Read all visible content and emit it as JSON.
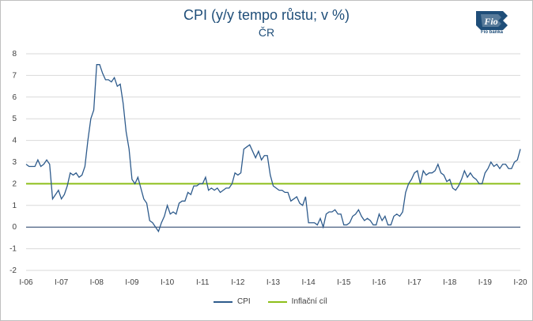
{
  "colors": {
    "cpi": "#2e5b8c",
    "target": "#8dbf1a",
    "grid": "#d9d9d9",
    "axis": "#1f3864"
  },
  "logo": {
    "icon": "fio-banka-logo",
    "text": "Fio banka"
  },
  "chart_data": {
    "type": "line",
    "title": "CPI (y/y tempo růstu; v %)",
    "subtitle": "ČR",
    "ylim": [
      -2,
      8
    ],
    "yticks": [
      -2,
      -1,
      0,
      1,
      2,
      3,
      4,
      5,
      6,
      7,
      8
    ],
    "xlim": [
      0,
      168
    ],
    "xticks": [
      {
        "label": "I-06",
        "x": 0
      },
      {
        "label": "I-07",
        "x": 12
      },
      {
        "label": "I-08",
        "x": 24
      },
      {
        "label": "I-09",
        "x": 36
      },
      {
        "label": "I-10",
        "x": 48
      },
      {
        "label": "I-11",
        "x": 60
      },
      {
        "label": "I-12",
        "x": 72
      },
      {
        "label": "I-13",
        "x": 84
      },
      {
        "label": "I-14",
        "x": 96
      },
      {
        "label": "I-15",
        "x": 108
      },
      {
        "label": "I-16",
        "x": 120
      },
      {
        "label": "I-17",
        "x": 132
      },
      {
        "label": "I-18",
        "x": 144
      },
      {
        "label": "I-19",
        "x": 156
      },
      {
        "label": "I-20",
        "x": 168
      }
    ],
    "grid": "horizontal",
    "legend_position": "bottom",
    "series": [
      {
        "name": "CPI",
        "values": [
          2.9,
          2.8,
          2.8,
          2.8,
          3.1,
          2.8,
          2.9,
          3.1,
          2.9,
          1.3,
          1.5,
          1.7,
          1.3,
          1.5,
          1.9,
          2.5,
          2.4,
          2.5,
          2.3,
          2.4,
          2.8,
          4.0,
          5.0,
          5.4,
          7.5,
          7.5,
          7.1,
          6.8,
          6.8,
          6.7,
          6.9,
          6.5,
          6.6,
          5.7,
          4.4,
          3.6,
          2.2,
          2.0,
          2.3,
          1.8,
          1.3,
          1.1,
          0.3,
          0.2,
          0.0,
          -0.2,
          0.2,
          0.5,
          1.0,
          0.6,
          0.7,
          0.6,
          1.1,
          1.2,
          1.2,
          1.6,
          1.5,
          1.9,
          1.9,
          2.0,
          2.0,
          2.3,
          1.7,
          1.8,
          1.7,
          1.8,
          1.6,
          1.7,
          1.8,
          1.8,
          2.0,
          2.5,
          2.4,
          2.5,
          3.6,
          3.7,
          3.8,
          3.5,
          3.2,
          3.5,
          3.1,
          3.3,
          3.3,
          2.4,
          1.9,
          1.8,
          1.7,
          1.7,
          1.6,
          1.6,
          1.2,
          1.3,
          1.4,
          1.1,
          1.0,
          1.4,
          0.2,
          0.2,
          0.2,
          0.1,
          0.4,
          0.0,
          0.6,
          0.7,
          0.7,
          0.8,
          0.6,
          0.6,
          0.1,
          0.1,
          0.2,
          0.5,
          0.6,
          0.8,
          0.5,
          0.3,
          0.4,
          0.3,
          0.1,
          0.1,
          0.6,
          0.3,
          0.5,
          0.1,
          0.1,
          0.5,
          0.6,
          0.5,
          0.7,
          1.6,
          2.0,
          2.2,
          2.5,
          2.6,
          2.0,
          2.6,
          2.4,
          2.5,
          2.5,
          2.6,
          2.9,
          2.5,
          2.4,
          2.1,
          2.2,
          1.8,
          1.7,
          1.9,
          2.2,
          2.6,
          2.3,
          2.5,
          2.3,
          2.2,
          2.0,
          2.0,
          2.5,
          2.7,
          3.0,
          2.8,
          2.9,
          2.7,
          2.9,
          2.9,
          2.7,
          2.7,
          3.0,
          3.1,
          3.6
        ]
      },
      {
        "name": "Inflační cíl",
        "values": [
          2,
          2
        ],
        "x": [
          0,
          168
        ]
      }
    ]
  }
}
